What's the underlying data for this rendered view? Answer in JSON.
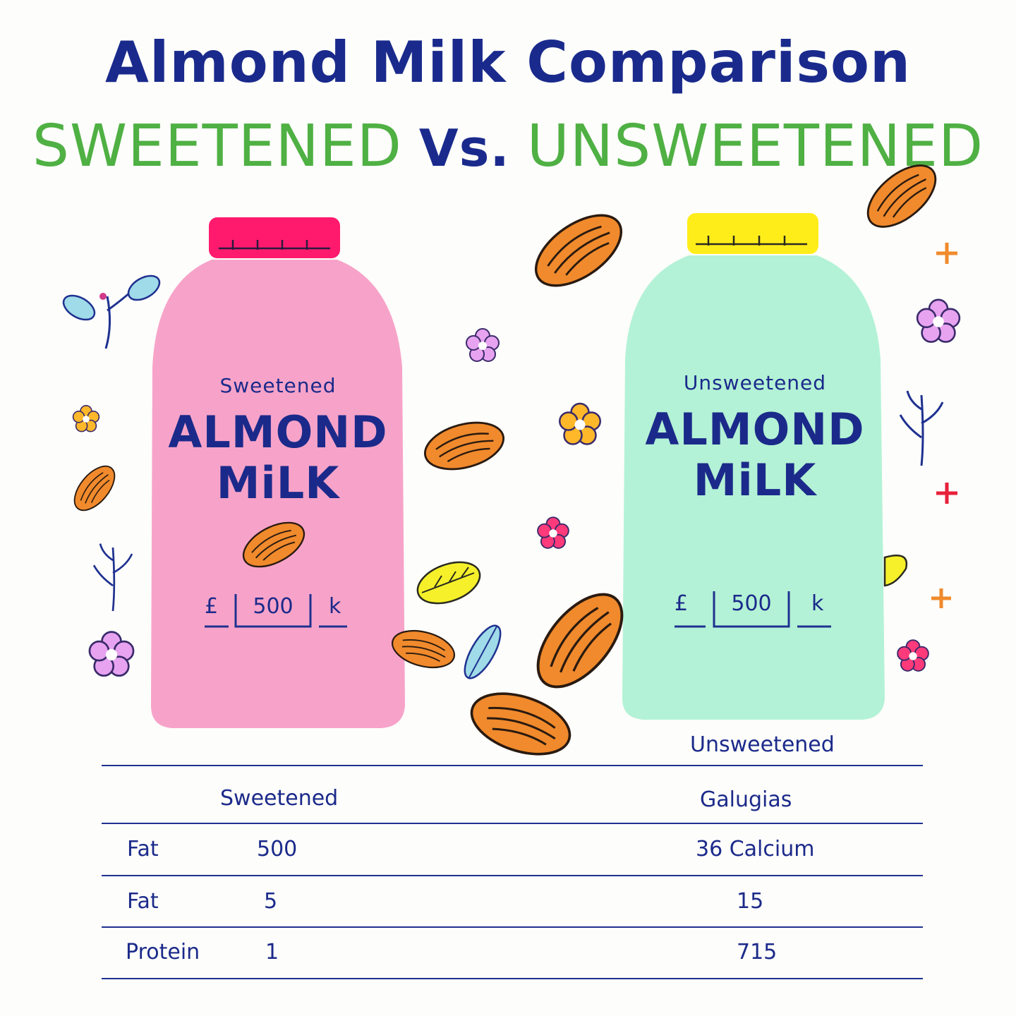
{
  "header": {
    "title": "Almond Milk Comparison",
    "subtitle_left": "SWEETENED",
    "subtitle_vs": "Vs.",
    "subtitle_right": "UNSWEETENED"
  },
  "bottles": [
    {
      "label_top": "Sweetened",
      "label_line1": "ALMOND",
      "label_line2": "MiLK",
      "mark_left": "£",
      "mark_value": "500",
      "mark_right": "k",
      "body_color": "#f7a3c9",
      "cap_color": "#ff1a6e"
    },
    {
      "label_top": "Unsweetened",
      "label_line1": "ALMOND",
      "label_line2": "MiLK",
      "mark_left": "£",
      "mark_value": "500",
      "mark_right": "k",
      "body_color": "#b3f2d6",
      "cap_color": "#ffed1a"
    }
  ],
  "table": {
    "top_header": "Unsweetened",
    "header_left": "Sweetened",
    "header_right": "Galugias",
    "rows": [
      {
        "label": "Fat",
        "left": "500",
        "right": "36 Calcium"
      },
      {
        "label": "Fat",
        "left": "5",
        "right": "15"
      },
      {
        "label": "Protein",
        "left": "1",
        "right": "715"
      }
    ]
  },
  "colors": {
    "ink": "#1b2a8a",
    "green": "#4fb043",
    "almond": "#f08a2c",
    "leaf_yellow": "#f5f02a",
    "leaf_blue": "#9fdbe8"
  }
}
